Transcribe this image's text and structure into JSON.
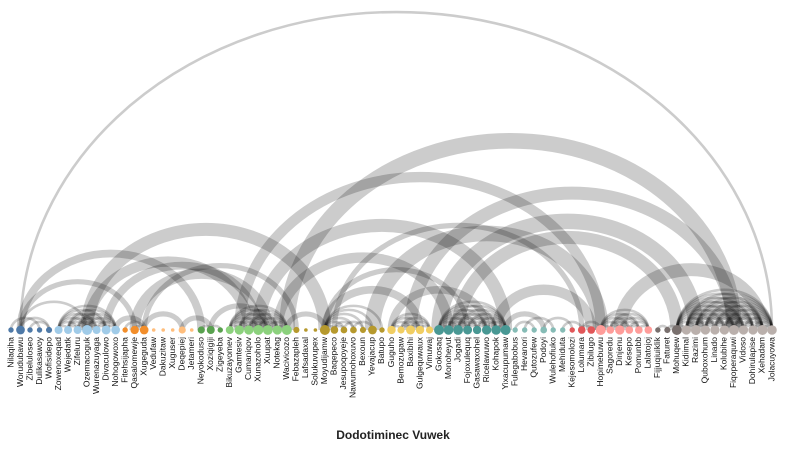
{
  "chart_data": {
    "type": "arc",
    "title": "Dodotiminec Vuwek",
    "nodes": [
      {
        "label": "Nilaqiha",
        "group": 0
      },
      {
        "label": "Worudubawu",
        "group": 0
      },
      {
        "label": "Zibeluloseo",
        "group": 0
      },
      {
        "label": "Dulikasawoy",
        "group": 0
      },
      {
        "label": "Wofisidepo",
        "group": 0
      },
      {
        "label": "Zowenoxeqad",
        "group": 1
      },
      {
        "label": "Wejedatk",
        "group": 1
      },
      {
        "label": "Zifeluru",
        "group": 1
      },
      {
        "label": "Ozemacoguk",
        "group": 1
      },
      {
        "label": "Wurenazuyaga",
        "group": 1
      },
      {
        "label": "Divaculowo",
        "group": 1
      },
      {
        "label": "Nohogowoxo",
        "group": 1
      },
      {
        "label": "Fitehsijapha",
        "group": 2
      },
      {
        "label": "Qasalomewje",
        "group": 2
      },
      {
        "label": "Xugeguda",
        "group": 2
      },
      {
        "label": "Vedufaw",
        "group": 3
      },
      {
        "label": "Dakuzitaw",
        "group": 3
      },
      {
        "label": "Xuguser",
        "group": 3
      },
      {
        "label": "Deqepiej",
        "group": 3
      },
      {
        "label": "Jetameri",
        "group": 3
      },
      {
        "label": "Neyokoduso",
        "group": 4
      },
      {
        "label": "Xoziqigiji",
        "group": 4
      },
      {
        "label": "Zigeyeba",
        "group": 4
      },
      {
        "label": "Bikuzayomev",
        "group": 5
      },
      {
        "label": "Gamtesiv",
        "group": 5
      },
      {
        "label": "Cumaniqov",
        "group": 5
      },
      {
        "label": "Xunazoholo",
        "group": 5
      },
      {
        "label": "Xuupat",
        "group": 5
      },
      {
        "label": "Notekag",
        "group": 5
      },
      {
        "label": "Wacivicozo",
        "group": 5
      },
      {
        "label": "Febazapleh",
        "group": 6
      },
      {
        "label": "Lafsadaxal",
        "group": 6
      },
      {
        "label": "Solukuvupex",
        "group": 6
      },
      {
        "label": "Moyudijamw",
        "group": 6
      },
      {
        "label": "Baqepeco",
        "group": 6
      },
      {
        "label": "Jesupoqoyeje",
        "group": 6
      },
      {
        "label": "Nawumohoxuvo",
        "group": 6
      },
      {
        "label": "Bexoun",
        "group": 6
      },
      {
        "label": "Yevajacup",
        "group": 6
      },
      {
        "label": "Batupo",
        "group": 6
      },
      {
        "label": "Guguho",
        "group": 7
      },
      {
        "label": "Bemozugaw",
        "group": 7
      },
      {
        "label": "Baxibihi",
        "group": 7
      },
      {
        "label": "Gulgequwaux",
        "group": 7
      },
      {
        "label": "Vimuwaj",
        "group": 7
      },
      {
        "label": "Gokosaq",
        "group": 8
      },
      {
        "label": "Monoheyut",
        "group": 8
      },
      {
        "label": "Jogadi",
        "group": 8
      },
      {
        "label": "Fojoxulequq",
        "group": 8
      },
      {
        "label": "Gasawaxohel",
        "group": 8
      },
      {
        "label": "Ricelawuwo",
        "group": 8
      },
      {
        "label": "Kohapok",
        "group": 8
      },
      {
        "label": "Yixacupumaw",
        "group": 8
      },
      {
        "label": "Fulegabobus",
        "group": 9
      },
      {
        "label": "Hevanori",
        "group": 9
      },
      {
        "label": "Qutozufew",
        "group": 9
      },
      {
        "label": "Podoyi",
        "group": 9
      },
      {
        "label": "Wulehofiuko",
        "group": 9
      },
      {
        "label": "Mehiduta",
        "group": 9
      },
      {
        "label": "Kejesomolozi",
        "group": 10
      },
      {
        "label": "Lolumara",
        "group": 10
      },
      {
        "label": "Zibilugo",
        "group": 10
      },
      {
        "label": "Hopimebuwu",
        "group": 11
      },
      {
        "label": "Sagoredu",
        "group": 11
      },
      {
        "label": "Dinjenu",
        "group": 11
      },
      {
        "label": "Kesepo",
        "group": 11
      },
      {
        "label": "Pomunbb",
        "group": 11
      },
      {
        "label": "Lalatojoj",
        "group": 11
      },
      {
        "label": "Fijjuqiuiklik",
        "group": 12
      },
      {
        "label": "Faturet",
        "group": 12
      },
      {
        "label": "Mohuqew",
        "group": 12
      },
      {
        "label": "Kidiimal",
        "group": 13
      },
      {
        "label": "Razimi",
        "group": 13
      },
      {
        "label": "Quboxohum",
        "group": 13
      },
      {
        "label": "Linado",
        "group": 13
      },
      {
        "label": "Kolubihe",
        "group": 13
      },
      {
        "label": "Fiqoperaquwi",
        "group": 13
      },
      {
        "label": "Vidoso",
        "group": 13
      },
      {
        "label": "Dohirulapise",
        "group": 13
      },
      {
        "label": "Xehadam",
        "group": 13
      },
      {
        "label": "Jolacuyowa",
        "group": 13
      }
    ],
    "group_colors": [
      "#4e79a7",
      "#a0cbe8",
      "#f28e2b",
      "#ffbe7d",
      "#59a14f",
      "#8cd17d",
      "#b6992d",
      "#f1ce63",
      "#499894",
      "#86bcb6",
      "#e15759",
      "#ff9d9a",
      "#79706e",
      "#bab0ac"
    ],
    "links": [
      [
        1,
        80,
        1
      ],
      [
        1,
        13,
        2
      ],
      [
        1,
        20,
        3
      ],
      [
        1,
        8,
        1
      ],
      [
        1,
        4,
        1
      ],
      [
        0,
        3,
        1
      ],
      [
        2,
        4,
        1
      ],
      [
        5,
        6,
        1
      ],
      [
        5,
        7,
        1
      ],
      [
        5,
        8,
        1
      ],
      [
        5,
        9,
        1
      ],
      [
        5,
        10,
        1
      ],
      [
        5,
        11,
        1
      ],
      [
        6,
        7,
        1
      ],
      [
        6,
        8,
        1
      ],
      [
        6,
        9,
        1
      ],
      [
        6,
        10,
        1
      ],
      [
        6,
        11,
        1
      ],
      [
        7,
        8,
        1
      ],
      [
        7,
        9,
        1
      ],
      [
        7,
        10,
        1
      ],
      [
        7,
        11,
        1
      ],
      [
        8,
        9,
        1
      ],
      [
        8,
        10,
        1
      ],
      [
        8,
        11,
        1
      ],
      [
        9,
        10,
        1
      ],
      [
        9,
        11,
        1
      ],
      [
        10,
        11,
        1
      ],
      [
        8,
        25,
        4
      ],
      [
        8,
        33,
        5
      ],
      [
        10,
        26,
        3
      ],
      [
        11,
        14,
        2
      ],
      [
        12,
        14,
        1
      ],
      [
        13,
        14,
        1
      ],
      [
        13,
        27,
        4
      ],
      [
        14,
        18,
        2
      ],
      [
        14,
        30,
        2
      ],
      [
        18,
        21,
        2
      ],
      [
        20,
        21,
        1
      ],
      [
        21,
        22,
        1
      ],
      [
        21,
        27,
        2
      ],
      [
        23,
        24,
        1
      ],
      [
        23,
        25,
        1
      ],
      [
        23,
        26,
        1
      ],
      [
        23,
        27,
        1
      ],
      [
        23,
        28,
        1
      ],
      [
        23,
        29,
        1
      ],
      [
        24,
        25,
        1
      ],
      [
        24,
        26,
        1
      ],
      [
        24,
        27,
        1
      ],
      [
        24,
        28,
        1
      ],
      [
        24,
        29,
        1
      ],
      [
        25,
        26,
        1
      ],
      [
        25,
        27,
        1
      ],
      [
        25,
        28,
        1
      ],
      [
        25,
        29,
        1
      ],
      [
        26,
        27,
        1
      ],
      [
        26,
        28,
        1
      ],
      [
        26,
        29,
        1
      ],
      [
        27,
        28,
        1
      ],
      [
        27,
        29,
        1
      ],
      [
        28,
        29,
        1
      ],
      [
        24,
        62,
        4
      ],
      [
        26,
        52,
        5
      ],
      [
        28,
        46,
        4
      ],
      [
        29,
        76,
        6
      ],
      [
        29,
        33,
        2
      ],
      [
        33,
        34,
        1
      ],
      [
        33,
        35,
        1
      ],
      [
        33,
        36,
        1
      ],
      [
        33,
        37,
        1
      ],
      [
        33,
        38,
        1
      ],
      [
        33,
        39,
        1
      ],
      [
        34,
        35,
        1
      ],
      [
        34,
        36,
        1
      ],
      [
        35,
        37,
        1
      ],
      [
        36,
        38,
        1
      ],
      [
        33,
        48,
        2
      ],
      [
        33,
        43,
        3
      ],
      [
        34,
        60,
        2
      ],
      [
        40,
        41,
        1
      ],
      [
        40,
        42,
        1
      ],
      [
        40,
        43,
        1
      ],
      [
        40,
        44,
        1
      ],
      [
        41,
        42,
        1
      ],
      [
        41,
        43,
        1
      ],
      [
        41,
        44,
        1
      ],
      [
        42,
        43,
        1
      ],
      [
        42,
        44,
        1
      ],
      [
        43,
        44,
        1
      ],
      [
        40,
        50,
        3
      ],
      [
        38,
        62,
        6
      ],
      [
        42,
        76,
        5
      ],
      [
        45,
        46,
        1
      ],
      [
        45,
        47,
        1
      ],
      [
        45,
        48,
        1
      ],
      [
        45,
        49,
        1
      ],
      [
        45,
        50,
        1
      ],
      [
        45,
        51,
        1
      ],
      [
        45,
        52,
        1
      ],
      [
        46,
        47,
        1
      ],
      [
        46,
        48,
        1
      ],
      [
        46,
        49,
        1
      ],
      [
        46,
        50,
        1
      ],
      [
        46,
        51,
        1
      ],
      [
        46,
        52,
        1
      ],
      [
        47,
        48,
        1
      ],
      [
        47,
        49,
        1
      ],
      [
        47,
        50,
        1
      ],
      [
        47,
        51,
        1
      ],
      [
        47,
        52,
        1
      ],
      [
        48,
        49,
        1
      ],
      [
        48,
        50,
        1
      ],
      [
        48,
        51,
        1
      ],
      [
        48,
        52,
        1
      ],
      [
        49,
        50,
        1
      ],
      [
        49,
        51,
        1
      ],
      [
        49,
        52,
        1
      ],
      [
        50,
        51,
        1
      ],
      [
        50,
        52,
        1
      ],
      [
        51,
        52,
        1
      ],
      [
        45,
        72,
        6
      ],
      [
        47,
        70,
        5
      ],
      [
        51,
        61,
        4
      ],
      [
        52,
        56,
        2
      ],
      [
        53,
        55,
        1
      ],
      [
        54,
        57,
        1
      ],
      [
        56,
        59,
        1
      ],
      [
        58,
        60,
        1
      ],
      [
        60,
        61,
        1
      ],
      [
        60,
        62,
        1
      ],
      [
        62,
        63,
        1
      ],
      [
        62,
        64,
        1
      ],
      [
        62,
        65,
        1
      ],
      [
        62,
        66,
        1
      ],
      [
        62,
        67,
        1
      ],
      [
        63,
        64,
        1
      ],
      [
        63,
        65,
        1
      ],
      [
        63,
        66,
        1
      ],
      [
        63,
        67,
        1
      ],
      [
        64,
        65,
        1
      ],
      [
        64,
        66,
        1
      ],
      [
        64,
        67,
        1
      ],
      [
        65,
        66,
        1
      ],
      [
        65,
        67,
        1
      ],
      [
        66,
        67,
        1
      ],
      [
        64,
        79,
        5
      ],
      [
        68,
        69,
        1
      ],
      [
        69,
        70,
        1
      ],
      [
        70,
        71,
        1
      ],
      [
        70,
        72,
        1
      ],
      [
        70,
        73,
        1
      ],
      [
        70,
        74,
        1
      ],
      [
        70,
        75,
        1
      ],
      [
        70,
        76,
        1
      ],
      [
        70,
        77,
        1
      ],
      [
        70,
        78,
        1
      ],
      [
        70,
        79,
        1
      ],
      [
        70,
        80,
        1
      ],
      [
        71,
        72,
        1
      ],
      [
        71,
        73,
        1
      ],
      [
        71,
        74,
        1
      ],
      [
        71,
        75,
        1
      ],
      [
        71,
        76,
        1
      ],
      [
        71,
        77,
        1
      ],
      [
        71,
        78,
        1
      ],
      [
        71,
        79,
        1
      ],
      [
        71,
        80,
        1
      ],
      [
        72,
        73,
        1
      ],
      [
        72,
        74,
        1
      ],
      [
        72,
        75,
        1
      ],
      [
        72,
        76,
        1
      ],
      [
        72,
        77,
        1
      ],
      [
        72,
        78,
        1
      ],
      [
        72,
        79,
        1
      ],
      [
        72,
        80,
        1
      ],
      [
        73,
        74,
        1
      ],
      [
        73,
        75,
        1
      ],
      [
        73,
        76,
        1
      ],
      [
        73,
        77,
        1
      ],
      [
        73,
        78,
        1
      ],
      [
        73,
        79,
        1
      ],
      [
        73,
        80,
        1
      ],
      [
        74,
        75,
        1
      ],
      [
        74,
        76,
        1
      ],
      [
        74,
        77,
        1
      ],
      [
        74,
        78,
        1
      ],
      [
        74,
        79,
        1
      ],
      [
        74,
        80,
        1
      ],
      [
        75,
        76,
        1
      ],
      [
        75,
        77,
        1
      ],
      [
        75,
        78,
        1
      ],
      [
        75,
        79,
        1
      ],
      [
        75,
        80,
        1
      ],
      [
        76,
        77,
        1
      ],
      [
        76,
        78,
        1
      ],
      [
        76,
        79,
        1
      ],
      [
        76,
        80,
        1
      ],
      [
        77,
        78,
        1
      ],
      [
        77,
        79,
        1
      ],
      [
        77,
        80,
        1
      ],
      [
        78,
        79,
        1
      ],
      [
        78,
        80,
        1
      ],
      [
        79,
        80,
        1
      ]
    ]
  }
}
